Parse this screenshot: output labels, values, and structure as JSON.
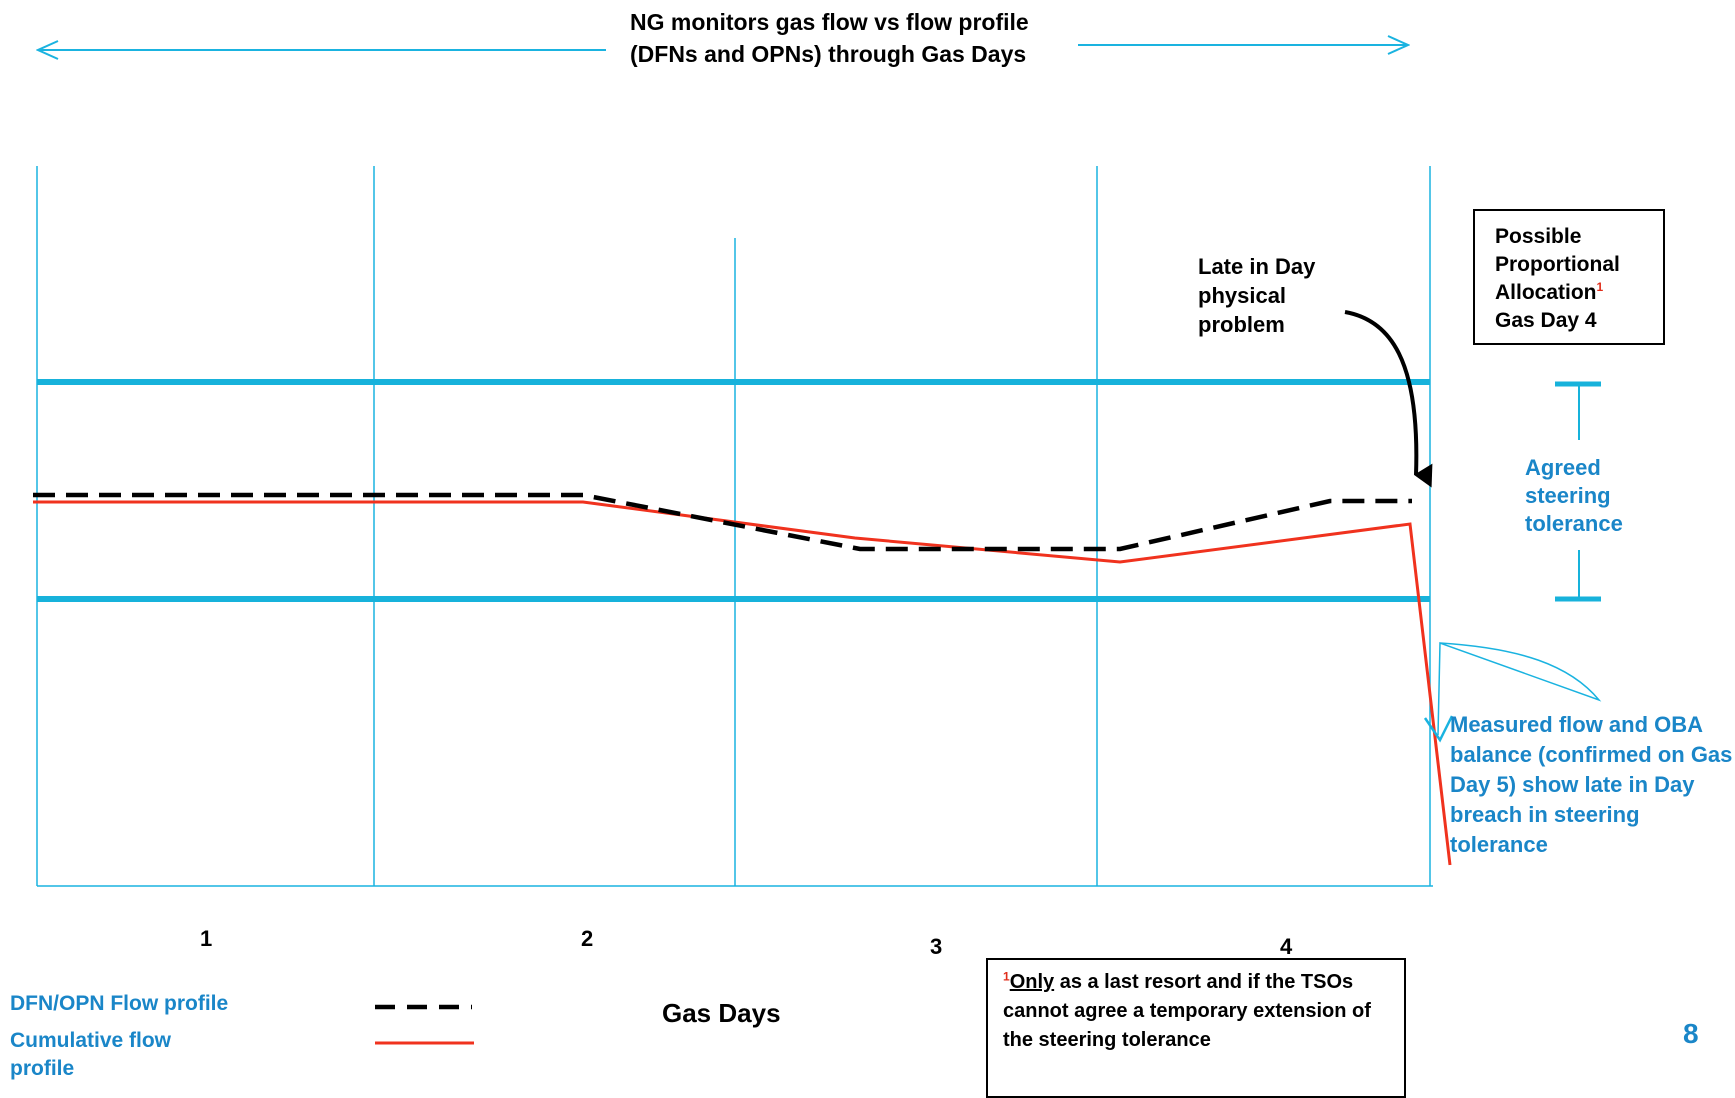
{
  "header": {
    "text": "NG monitors gas flow vs flow profile (DFNs and OPNs) through Gas Days"
  },
  "annotation_late": {
    "text": "Late in Day physical problem"
  },
  "allocation_box": {
    "text": "Possible Proportional Allocation",
    "footnote_marker": "1",
    "suffix": "Gas Day 4"
  },
  "tolerance_label": {
    "text": "Agreed steering tolerance"
  },
  "measured_label": {
    "text": "Measured flow and OBA balance (confirmed on Gas Day 5) show late in Day breach in steering tolerance"
  },
  "x_axis": {
    "label": "Gas Days",
    "days": [
      "1",
      "2",
      "3",
      "4"
    ]
  },
  "legend": {
    "dfn_label": "DFN/OPN Flow profile",
    "cumulative_label": "Cumulative flow profile"
  },
  "footnote": {
    "marker": "1",
    "emphasis": "Only",
    "text": " as a last resort and if the TSOs cannot agree a temporary extension of the steering tolerance"
  },
  "page_number": "8",
  "colors": {
    "grid": "#1ab3e0",
    "band": "#17b2db",
    "label_blue": "#1a86c8",
    "cumulative": "#f0321e",
    "dfn": "#000000",
    "footnote_marker": "#e02d1b"
  }
}
